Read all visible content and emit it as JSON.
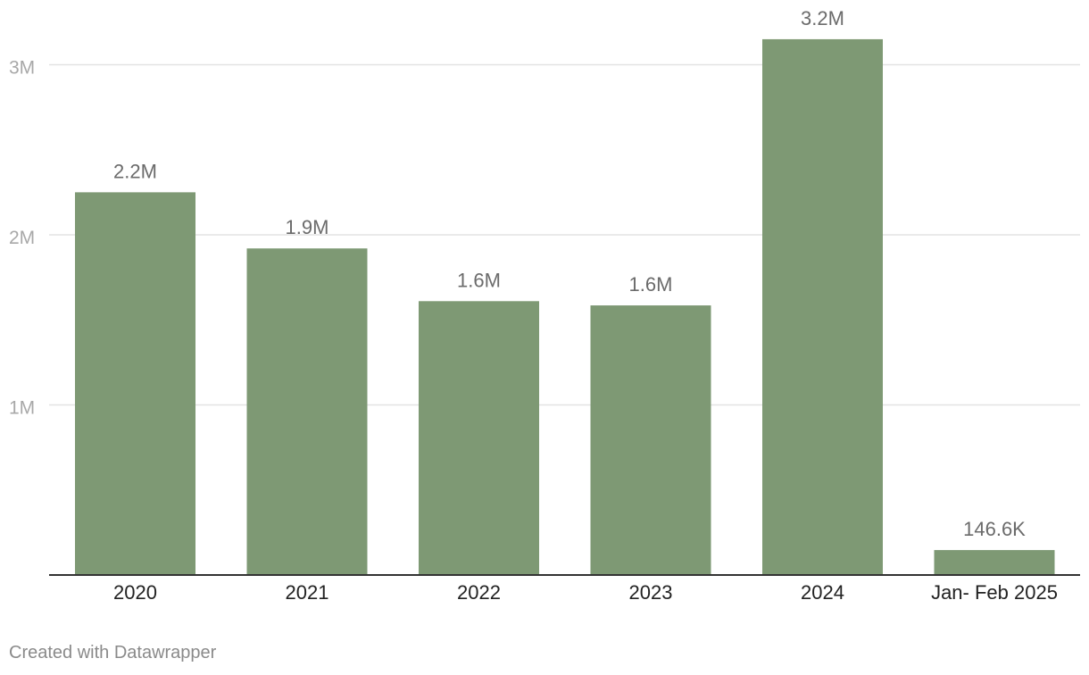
{
  "chart_data": {
    "type": "bar",
    "categories": [
      "2020",
      "2021",
      "2022",
      "2023",
      "2024",
      "Jan- Feb 2025"
    ],
    "values": [
      2250000,
      1920000,
      1610000,
      1585000,
      3150000,
      146600
    ],
    "data_labels": [
      "2.2M",
      "1.9M",
      "1.6M",
      "1.6M",
      "3.2M",
      "146.6K"
    ],
    "y_ticks": [
      1000000,
      2000000,
      3000000
    ],
    "y_tick_labels": [
      "1M",
      "2M",
      "3M"
    ],
    "ylim": [
      0,
      3000000
    ],
    "grid": true,
    "bar_color": "#7e9974",
    "title": "",
    "xlabel": "",
    "ylabel": ""
  },
  "footer": {
    "credit": "Created with Datawrapper"
  },
  "colors": {
    "grid": "#e3e3e3",
    "axis": "#333333",
    "tick_label": "#a8a8a8",
    "category_label": "#222222",
    "value_label": "#6b6b6b"
  }
}
